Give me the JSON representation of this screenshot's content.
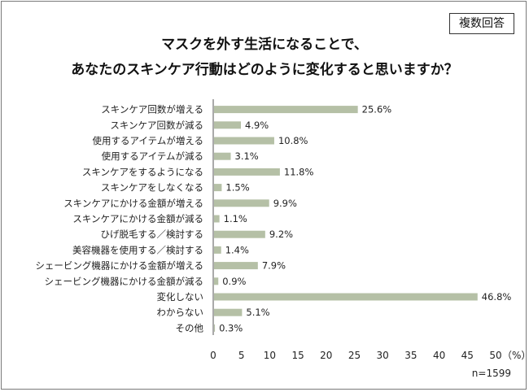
{
  "badge": "複数回答",
  "title_line1": "マスクを外す生活になることで、",
  "title_line2": "あなたのスキンケア行動はどのように変化すると思いますか？",
  "sample_note": "n=1599",
  "colors": {
    "bar": "#b5c0a6",
    "axis": "#555555",
    "text": "#222222"
  },
  "chart_data": {
    "type": "bar",
    "orientation": "horizontal",
    "categories": [
      "スキンケア回数が増える",
      "スキンケア回数が減る",
      "使用するアイテムが増える",
      "使用するアイテムが減る",
      "スキンケアをするようになる",
      "スキンケアをしなくなる",
      "スキンケアにかける金額が増える",
      "スキンケアにかける金額が減る",
      "ひげ脱毛する／検討する",
      "美容機器を使用する／検討する",
      "シェービング機器にかける金額が増える",
      "シェービング機器にかける金額が減る",
      "変化しない",
      "わからない",
      "その他"
    ],
    "values": [
      25.6,
      4.9,
      10.8,
      3.1,
      11.8,
      1.5,
      9.9,
      1.1,
      9.2,
      1.4,
      7.9,
      0.9,
      46.8,
      5.1,
      0.3
    ],
    "value_labels": [
      "25.6%",
      "4.9%",
      "10.8%",
      "3.1%",
      "11.8%",
      "1.5%",
      "9.9%",
      "1.1%",
      "9.2%",
      "1.4%",
      "7.9%",
      "0.9%",
      "46.8%",
      "5.1%",
      "0.3%"
    ],
    "xlim": [
      0,
      50
    ],
    "xticks": [
      "0",
      "5",
      "10",
      "15",
      "20",
      "25",
      "30",
      "35",
      "40",
      "45",
      "50"
    ],
    "x_unit": "（%）",
    "grid": false
  }
}
